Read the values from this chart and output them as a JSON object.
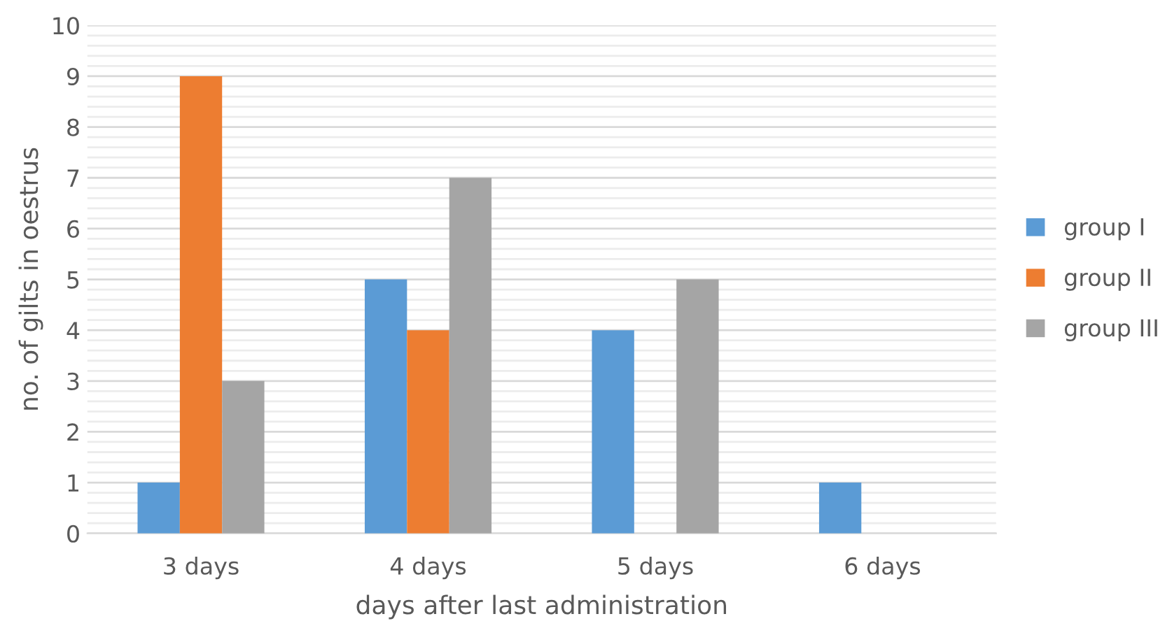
{
  "chart_data": {
    "type": "bar",
    "xlabel": "days after last administration",
    "ylabel": "no. of gilts in oestrus",
    "categories": [
      "3 days",
      "4 days",
      "5 days",
      "6 days"
    ],
    "series": [
      {
        "name": "group I",
        "color": "#5b9bd5",
        "values": [
          1,
          5,
          4,
          1
        ]
      },
      {
        "name": "group II",
        "color": "#ed7d31",
        "values": [
          9,
          4,
          0,
          0
        ]
      },
      {
        "name": "group III",
        "color": "#a5a5a5",
        "values": [
          3,
          7,
          5,
          0
        ]
      }
    ],
    "ylim": [
      0,
      10
    ],
    "yticks": [
      0,
      {
        "value": 0.2,
        "label": null
      },
      {
        "value": 0.4,
        "label": null
      },
      {
        "value": 0.6,
        "label": null
      },
      {
        "value": 0.8,
        "label": null
      },
      1,
      {
        "value": 1.2,
        "label": null
      },
      {
        "value": 1.4,
        "label": null
      },
      {
        "value": 1.6,
        "label": null
      },
      {
        "value": 1.8,
        "label": null
      },
      2,
      {
        "value": 2.2,
        "label": null
      },
      {
        "value": 2.4,
        "label": null
      },
      {
        "value": 2.6,
        "label": null
      },
      {
        "value": 2.8,
        "label": null
      },
      3,
      {
        "value": 3.2,
        "label": null
      },
      {
        "value": 3.4,
        "label": null
      },
      {
        "value": 3.6,
        "label": null
      },
      {
        "value": 3.8,
        "label": null
      },
      4,
      {
        "value": 4.2,
        "label": null
      },
      {
        "value": 4.4,
        "label": null
      },
      {
        "value": 4.6,
        "label": null
      },
      {
        "value": 4.8,
        "label": null
      },
      5,
      {
        "value": 5.2,
        "label": null
      },
      {
        "value": 5.4,
        "label": null
      },
      {
        "value": 5.6,
        "label": null
      },
      {
        "value": 5.8,
        "label": null
      },
      6,
      {
        "value": 6.2,
        "label": null
      },
      {
        "value": 6.4,
        "label": null
      },
      {
        "value": 6.6,
        "label": null
      },
      {
        "value": 6.8,
        "label": null
      },
      7,
      {
        "value": 7.2,
        "label": null
      },
      {
        "value": 7.4,
        "label": null
      },
      {
        "value": 7.6,
        "label": null
      },
      {
        "value": 7.8,
        "label": null
      },
      8,
      {
        "value": 8.2,
        "label": null
      },
      {
        "value": 8.4,
        "label": null
      },
      {
        "value": 8.6,
        "label": null
      },
      {
        "value": 8.8,
        "label": null
      },
      9,
      {
        "value": 9.2,
        "label": null
      },
      {
        "value": 9.4,
        "label": null
      },
      {
        "value": 9.6,
        "label": null
      },
      {
        "value": 9.8,
        "label": null
      },
      10
    ],
    "grid": "y",
    "legend": "right"
  }
}
